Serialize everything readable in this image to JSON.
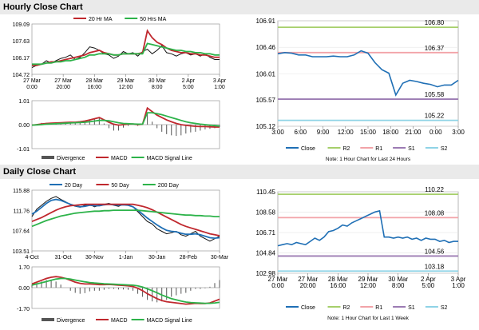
{
  "sections": {
    "hourly_title": "Hourly Close Chart",
    "daily_title": "Daily Close Chart"
  },
  "colors": {
    "close": "#1f6fb5",
    "ma_short": "#c0282e",
    "ma_long": "#2db34a",
    "ma_200": "#2db34a",
    "r2": "#a6cf6b",
    "r1": "#f2a3a8",
    "s1": "#9c7bb3",
    "s2": "#8fd3e6",
    "macd": "#c0282e",
    "signal": "#2db34a",
    "divergence": "#555555"
  },
  "chart_data": [
    {
      "id": "hourly_price",
      "type": "line",
      "legend": [
        "20 Hr MA",
        "50 Hrs MA"
      ],
      "y_ticks": [
        "109.09",
        "107.63",
        "106.17",
        "104.72"
      ],
      "ylim": [
        104.72,
        109.09
      ],
      "x_ticks": [
        "27 Mar\n0:00",
        "27 Mar\n20:00",
        "28 Mar\n16:00",
        "29 Mar\n12:00",
        "30 Mar\n8:00",
        "2 Apr\n5:00",
        "3 Apr\n1:00"
      ],
      "series": [
        {
          "name": "Close",
          "values": [
            105.3,
            105.5,
            105.6,
            105.9,
            105.7,
            105.9,
            106.1,
            106.2,
            106.4,
            106.0,
            106.2,
            106.6,
            107.1,
            107.0,
            106.8,
            106.5,
            106.4,
            106.1,
            106.3,
            106.7,
            106.5,
            106.6,
            106.3,
            106.7,
            106.9,
            106.5,
            106.8,
            107.2,
            106.6,
            106.5,
            106.3,
            106.5,
            106.6,
            106.4,
            106.5,
            106.3,
            106.5,
            106.2,
            106.0,
            106.0
          ]
        },
        {
          "name": "20 Hr MA",
          "values": [
            105.5,
            105.5,
            105.6,
            105.7,
            105.8,
            105.8,
            105.9,
            106.0,
            106.1,
            106.2,
            106.3,
            106.4,
            106.6,
            106.7,
            106.8,
            106.6,
            106.5,
            106.4,
            106.4,
            106.5,
            106.5,
            106.5,
            106.5,
            106.6,
            108.5,
            107.9,
            107.5,
            107.3,
            107.0,
            106.8,
            106.7,
            106.6,
            106.6,
            106.5,
            106.5,
            106.4,
            106.4,
            106.3,
            106.2,
            106.2
          ]
        },
        {
          "name": "50 Hrs MA",
          "values": [
            105.6,
            105.6,
            105.6,
            105.7,
            105.7,
            105.8,
            105.8,
            105.9,
            105.9,
            106.0,
            106.1,
            106.2,
            106.4,
            106.4,
            106.5,
            106.5,
            106.5,
            106.4,
            106.4,
            106.5,
            106.5,
            106.5,
            106.5,
            106.5,
            107.4,
            107.3,
            107.2,
            107.1,
            107.0,
            106.9,
            106.8,
            106.8,
            106.7,
            106.7,
            106.6,
            106.6,
            106.5,
            106.5,
            106.4,
            106.4
          ]
        }
      ]
    },
    {
      "id": "hourly_macd",
      "type": "line",
      "y_ticks": [
        "1.01",
        "0.00",
        "-1.01"
      ],
      "ylim": [
        -1.01,
        1.01
      ],
      "legend": [
        "Divergence",
        "MACD",
        "MACD Signal Line"
      ],
      "series": [
        {
          "name": "MACD",
          "values": [
            -0.02,
            0.0,
            0.03,
            0.05,
            0.06,
            0.07,
            0.08,
            0.09,
            0.1,
            0.1,
            0.12,
            0.15,
            0.2,
            0.25,
            0.3,
            0.2,
            0.1,
            0.02,
            -0.02,
            0.0,
            0.02,
            0.03,
            0.0,
            0.02,
            0.7,
            0.55,
            0.4,
            0.3,
            0.2,
            0.12,
            0.05,
            0.0,
            -0.03,
            -0.05,
            -0.07,
            -0.08,
            -0.08,
            -0.09,
            -0.1,
            -0.1
          ]
        },
        {
          "name": "MACD Signal Line",
          "values": [
            -0.02,
            -0.01,
            0.0,
            0.02,
            0.03,
            0.04,
            0.05,
            0.06,
            0.07,
            0.08,
            0.09,
            0.1,
            0.12,
            0.15,
            0.18,
            0.18,
            0.16,
            0.12,
            0.08,
            0.05,
            0.04,
            0.03,
            0.02,
            0.02,
            0.5,
            0.5,
            0.46,
            0.42,
            0.36,
            0.3,
            0.24,
            0.18,
            0.12,
            0.08,
            0.05,
            0.02,
            0.0,
            -0.02,
            -0.04,
            -0.06
          ]
        }
      ]
    },
    {
      "id": "daily_price",
      "type": "line",
      "legend": [
        "20 Day",
        "50 Day",
        "200 Day"
      ],
      "y_ticks": [
        "115.88",
        "111.76",
        "107.64",
        "103.51"
      ],
      "ylim": [
        103.51,
        115.88
      ],
      "x_ticks": [
        "4-Oct",
        "31-Oct",
        "30-Nov",
        "1-Jan",
        "30-Jan",
        "28-Feb",
        "30-Mar"
      ],
      "series": [
        {
          "name": "Close",
          "values": [
            110.5,
            112.0,
            112.8,
            113.6,
            114.2,
            114.6,
            114.0,
            113.5,
            112.9,
            112.6,
            112.4,
            112.8,
            113.0,
            112.5,
            112.8,
            113.0,
            113.2,
            112.8,
            112.6,
            113.0,
            112.9,
            112.5,
            111.5,
            110.5,
            109.5,
            109.0,
            108.0,
            107.5,
            107.0,
            107.2,
            107.5,
            106.8,
            106.5,
            107.0,
            107.5,
            106.5,
            106.0,
            105.5,
            106.0,
            106.5
          ]
        },
        {
          "name": "20 Day",
          "values": [
            111.0,
            111.6,
            112.4,
            113.2,
            113.8,
            114.0,
            113.8,
            113.4,
            113.0,
            112.7,
            112.5,
            112.6,
            112.8,
            112.7,
            112.7,
            112.9,
            113.0,
            112.9,
            112.8,
            112.9,
            112.8,
            112.5,
            111.8,
            111.0,
            110.2,
            109.5,
            108.8,
            108.2,
            107.7,
            107.5,
            107.4,
            107.1,
            106.9,
            106.9,
            107.0,
            106.8,
            106.5,
            106.2,
            106.1,
            106.2
          ]
        },
        {
          "name": "50 Day",
          "values": [
            109.5,
            109.9,
            110.3,
            110.8,
            111.3,
            111.8,
            112.2,
            112.5,
            112.7,
            112.8,
            112.9,
            113.0,
            113.0,
            113.0,
            113.0,
            113.0,
            113.0,
            113.0,
            113.0,
            113.0,
            113.0,
            113.0,
            112.8,
            112.6,
            112.3,
            111.9,
            111.4,
            110.9,
            110.4,
            109.9,
            109.4,
            108.9,
            108.5,
            108.2,
            107.9,
            107.6,
            107.3,
            107.0,
            106.8,
            106.6
          ]
        },
        {
          "name": "200 Day",
          "values": [
            108.5,
            108.9,
            109.3,
            109.7,
            110.0,
            110.3,
            110.6,
            110.8,
            111.0,
            111.2,
            111.3,
            111.4,
            111.5,
            111.6,
            111.6,
            111.7,
            111.7,
            111.8,
            111.8,
            111.8,
            111.8,
            111.8,
            111.8,
            111.7,
            111.6,
            111.5,
            111.4,
            111.3,
            111.2,
            111.1,
            111.0,
            110.9,
            110.8,
            110.8,
            110.7,
            110.7,
            110.6,
            110.6,
            110.5,
            110.5
          ]
        }
      ]
    },
    {
      "id": "daily_macd",
      "type": "line",
      "y_ticks": [
        "1.70",
        "0.00",
        "-1.70"
      ],
      "ylim": [
        -1.7,
        1.7
      ],
      "legend": [
        "Divergence",
        "MACD",
        "MACD Signal Line"
      ],
      "series": [
        {
          "name": "MACD",
          "values": [
            0.3,
            0.45,
            0.6,
            0.75,
            0.85,
            0.9,
            0.85,
            0.75,
            0.6,
            0.45,
            0.35,
            0.3,
            0.3,
            0.28,
            0.25,
            0.25,
            0.26,
            0.24,
            0.2,
            0.18,
            0.15,
            0.1,
            -0.05,
            -0.25,
            -0.5,
            -0.7,
            -0.9,
            -1.05,
            -1.15,
            -1.2,
            -1.25,
            -1.3,
            -1.35,
            -1.32,
            -1.28,
            -1.3,
            -1.3,
            -1.25,
            -1.1,
            -0.95
          ]
        },
        {
          "name": "MACD Signal Line",
          "values": [
            0.2,
            0.3,
            0.4,
            0.5,
            0.6,
            0.7,
            0.75,
            0.75,
            0.7,
            0.62,
            0.55,
            0.48,
            0.42,
            0.38,
            0.35,
            0.32,
            0.3,
            0.28,
            0.26,
            0.24,
            0.22,
            0.2,
            0.15,
            0.05,
            -0.1,
            -0.25,
            -0.42,
            -0.6,
            -0.75,
            -0.9,
            -1.0,
            -1.1,
            -1.18,
            -1.22,
            -1.24,
            -1.26,
            -1.28,
            -1.28,
            -1.25,
            -1.2
          ]
        }
      ]
    },
    {
      "id": "hourly_pivot",
      "type": "line",
      "note": "Note: 1 Hour Chart for Last 24 Hours",
      "y_ticks": [
        "106.91",
        "106.46",
        "106.01",
        "105.57",
        "105.12"
      ],
      "ylim": [
        105.12,
        106.91
      ],
      "x_ticks": [
        "3:00",
        "6:00",
        "9:00",
        "12:00",
        "15:00",
        "18:00",
        "21:00",
        "0:00",
        "3:00"
      ],
      "legend": [
        "Close",
        "R2",
        "R1",
        "S1",
        "S2"
      ],
      "levels": [
        {
          "name": "R2",
          "value": 106.8,
          "label": "106.80"
        },
        {
          "name": "R1",
          "value": 106.37,
          "label": "106.37"
        },
        {
          "name": "S1",
          "value": 105.58,
          "label": "105.58"
        },
        {
          "name": "S2",
          "value": 105.22,
          "label": "105.22"
        }
      ],
      "series": [
        {
          "name": "Close",
          "values": [
            106.35,
            106.37,
            106.36,
            106.33,
            106.33,
            106.3,
            106.3,
            106.3,
            106.31,
            106.3,
            106.3,
            106.33,
            106.4,
            106.36,
            106.2,
            106.08,
            106.02,
            105.65,
            105.85,
            105.9,
            105.88,
            105.85,
            105.83,
            105.79,
            105.82,
            105.82,
            105.9
          ]
        }
      ]
    },
    {
      "id": "daily_pivot",
      "type": "line",
      "note": "Note: 1 Hour Chart for Last 1 Week",
      "y_ticks": [
        "110.45",
        "108.58",
        "106.71",
        "104.84",
        "102.98"
      ],
      "ylim": [
        102.98,
        110.45
      ],
      "x_ticks": [
        "27 Mar\n0:00",
        "27 Mar\n20:00",
        "28 Mar\n16:00",
        "29 Mar\n12:00",
        "30 Mar\n8:00",
        "2 Apr\n5:00",
        "3 Apr\n1:00"
      ],
      "legend": [
        "Close",
        "R2",
        "R1",
        "S1",
        "S2"
      ],
      "levels": [
        {
          "name": "R2",
          "value": 110.22,
          "label": "110.22"
        },
        {
          "name": "R1",
          "value": 108.08,
          "label": "108.08"
        },
        {
          "name": "S1",
          "value": 104.56,
          "label": "104.56"
        },
        {
          "name": "S2",
          "value": 103.18,
          "label": "103.18"
        }
      ],
      "series": [
        {
          "name": "Close",
          "values": [
            105.5,
            105.6,
            105.7,
            105.6,
            105.8,
            105.7,
            105.6,
            105.9,
            106.2,
            106.0,
            106.3,
            106.8,
            106.9,
            107.1,
            107.4,
            107.3,
            107.6,
            107.8,
            108.0,
            108.2,
            108.4,
            108.6,
            108.7,
            106.3,
            106.3,
            106.2,
            106.3,
            106.2,
            106.3,
            106.1,
            106.2,
            106.0,
            106.2,
            106.1,
            106.1,
            105.9,
            106.0,
            105.8,
            105.9,
            105.9
          ]
        }
      ]
    }
  ]
}
